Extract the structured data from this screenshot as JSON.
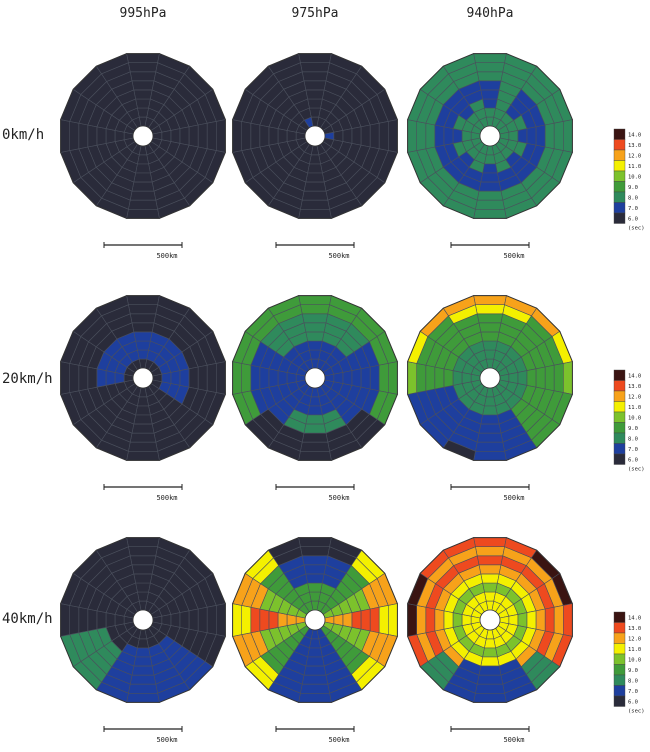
{
  "column_labels": [
    "995hPa",
    "975hPa",
    "940hPa"
  ],
  "row_labels": [
    "0km/h",
    "20km/h",
    "40km/h"
  ],
  "colors": {
    "6.0": "#2a2b3a",
    "7.0": "#1e3f9e",
    "8.0": "#2f8a5c",
    "9.0": "#3f9b3a",
    "10.0": "#7cc22c",
    "11.0": "#f4f000",
    "12.0": "#f7a21a",
    "13.0": "#ee4a1f",
    "14.0": "#3a1412"
  },
  "chart_data": {
    "type": "heatmap",
    "description_units": "sec",
    "scale_bar_label": "500km",
    "legend": {
      "values": [
        "14.0",
        "13.0",
        "12.0",
        "11.0",
        "10.0",
        "9.0",
        "8.0",
        "7.0",
        "6.0"
      ],
      "unit": "(sec)"
    },
    "panels": [
      {
        "pressure": "995hPa",
        "speed": "0km/h",
        "dominant": "6.0"
      },
      {
        "pressure": "975hPa",
        "speed": "0km/h",
        "dominant": "6.0"
      },
      {
        "pressure": "940hPa",
        "speed": "0km/h",
        "dominant": "8.0"
      },
      {
        "pressure": "995hPa",
        "speed": "20km/h",
        "dominant": "6.0"
      },
      {
        "pressure": "975hPa",
        "speed": "20km/h",
        "dominant": "8.0"
      },
      {
        "pressure": "940hPa",
        "speed": "20km/h",
        "dominant": "9.0"
      },
      {
        "pressure": "995hPa",
        "speed": "40km/h",
        "dominant": "6.0"
      },
      {
        "pressure": "975hPa",
        "speed": "40km/h",
        "dominant": "9.0"
      },
      {
        "pressure": "940hPa",
        "speed": "40km/h",
        "dominant": "12.0"
      }
    ]
  }
}
